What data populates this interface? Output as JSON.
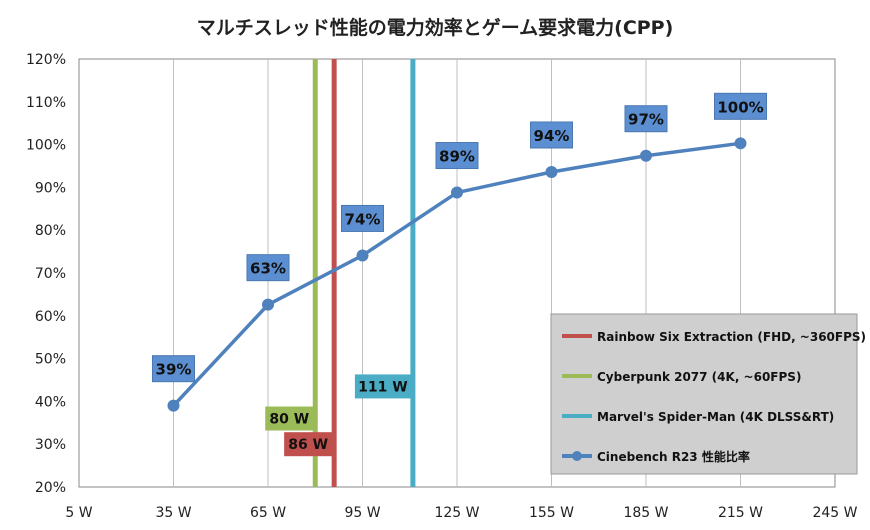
{
  "chart_data": {
    "type": "line",
    "title": "マルチスレッド性能の電力効率とゲーム要求電力(CPP)",
    "x_ticks": [
      "5 W",
      "35 W",
      "65 W",
      "95 W",
      "125 W",
      "155 W",
      "185 W",
      "215 W",
      "245 W"
    ],
    "y_ticks": [
      "20%",
      "30%",
      "40%",
      "50%",
      "60%",
      "70%",
      "80%",
      "90%",
      "100%",
      "110%",
      "120%"
    ],
    "xlim": [
      5,
      245
    ],
    "ylim": [
      20,
      120
    ],
    "grid": "vertical",
    "legend_position": "bottom-right",
    "series": [
      {
        "name": "Cinebench R23 性能比率",
        "color": "#4f81bd",
        "x": [
          35,
          65,
          95,
          125,
          155,
          185,
          215
        ],
        "y": [
          39,
          62.6,
          74.1,
          88.8,
          93.6,
          97.4,
          100.3
        ],
        "labels": [
          "39%",
          "63%",
          "74%",
          "89%",
          "94%",
          "97%",
          "100%"
        ]
      }
    ],
    "vertical_lines": [
      {
        "name": "Rainbow Six Extraction (FHD, ~360FPS)",
        "x": 86,
        "label": "86 W",
        "color": "#c0504d",
        "label_y": 30
      },
      {
        "name": "Cyberpunk 2077 (4K, ~60FPS)",
        "x": 80,
        "label": "80 W",
        "color": "#9bbb59",
        "label_y": 36
      },
      {
        "name": "Marvel's Spider-Man (4K DLSS&RT)",
        "x": 111,
        "label": "111 W",
        "color": "#4bacc6",
        "label_y": 43.5
      }
    ]
  }
}
